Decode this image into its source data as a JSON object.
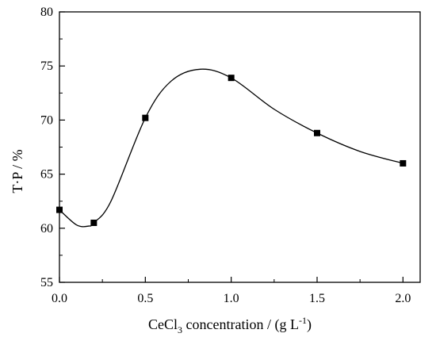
{
  "chart_data": {
    "type": "line",
    "title": "",
    "xlabel": "CeCl₃ concentration / (g L⁻¹)",
    "xlabel_parts": {
      "pre": "CeCl",
      "sub": "3",
      "mid": " concentration / (g L",
      "sup": "-1",
      "post": ")"
    },
    "ylabel": "T·P / %",
    "xlim": [
      0.0,
      2.1
    ],
    "ylim": [
      55,
      80
    ],
    "xticks": [
      0.0,
      0.5,
      1.0,
      1.5,
      2.0
    ],
    "xtick_labels": [
      "0.0",
      "0.5",
      "1.0",
      "1.5",
      "2.0"
    ],
    "yticks": [
      55,
      60,
      65,
      70,
      75,
      80
    ],
    "ytick_labels": [
      "55",
      "60",
      "65",
      "70",
      "75",
      "80"
    ],
    "grid": false,
    "series": [
      {
        "marker": "square",
        "color": "#000000",
        "x": [
          0.0,
          0.2,
          0.5,
          1.0,
          1.5,
          2.0
        ],
        "y": [
          61.7,
          60.5,
          70.2,
          73.9,
          68.8,
          66.0
        ],
        "smooth_curve": {
          "x": [
            0.0,
            0.1,
            0.17,
            0.2,
            0.3,
            0.5,
            0.65,
            0.82,
            1.0,
            1.25,
            1.5,
            1.75,
            2.0
          ],
          "y": [
            61.7,
            60.3,
            60.2,
            60.5,
            62.5,
            70.2,
            73.6,
            74.7,
            73.9,
            71.0,
            68.8,
            67.1,
            66.0
          ]
        }
      }
    ]
  }
}
